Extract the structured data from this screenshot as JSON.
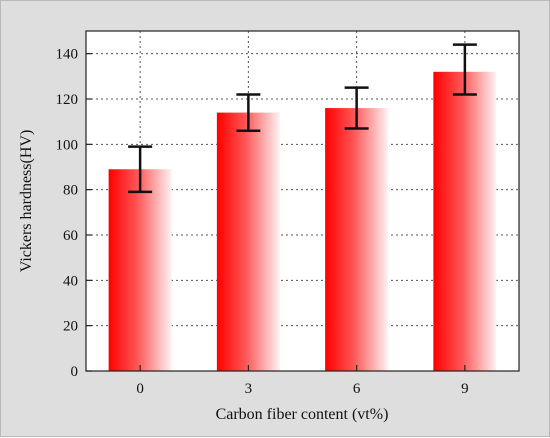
{
  "chart_data": {
    "type": "bar",
    "xlabel": "Carbon fiber content  (vt%)",
    "ylabel": "Vickers hardness(HV)",
    "categories": [
      "0",
      "3",
      "6",
      "9"
    ],
    "values": [
      89,
      114,
      116,
      132
    ],
    "error": [
      {
        "low": 79,
        "high": 99
      },
      {
        "low": 106,
        "high": 122
      },
      {
        "low": 107,
        "high": 125
      },
      {
        "low": 122,
        "high": 144
      }
    ],
    "ylim": [
      0,
      150
    ],
    "yticks": [
      0,
      20,
      40,
      60,
      80,
      100,
      120,
      140
    ],
    "grid": true,
    "colors": {
      "bar_dark": "#ff0000",
      "bar_light": "#fff2f2",
      "error_bar": "#111111",
      "grid": "#555555",
      "background": "#dedede"
    }
  }
}
